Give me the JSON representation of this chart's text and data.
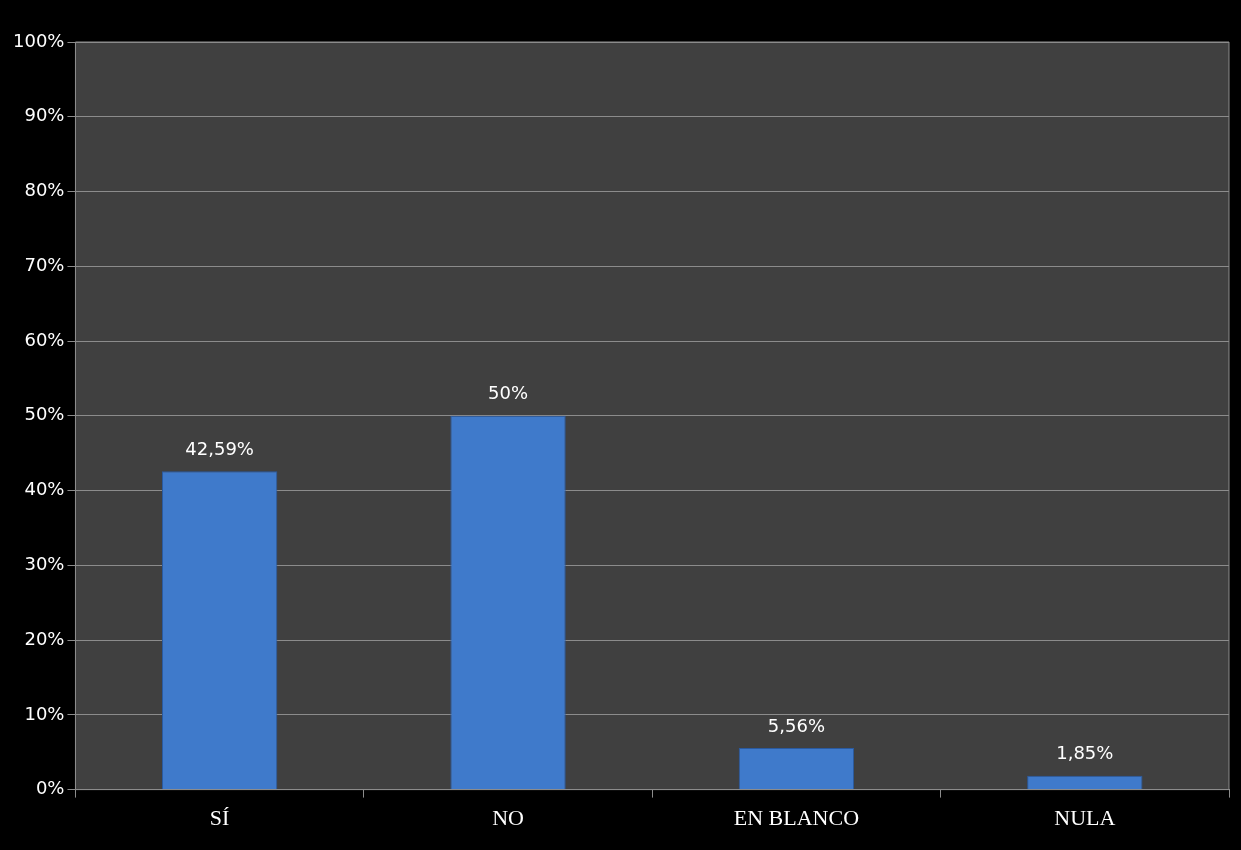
{
  "chart_data": {
    "type": "bar",
    "categories": [
      "SÍ",
      "NO",
      "EN BLANCO",
      "NULA"
    ],
    "values": [
      42.59,
      50,
      5.56,
      1.85
    ],
    "value_labels": [
      "42,59%",
      "50%",
      "5,56%",
      "1,85%"
    ],
    "color": "#3f7acb",
    "ylim": [
      0,
      100
    ],
    "yticks": [
      {
        "value": 0,
        "label": "0%"
      },
      {
        "value": 10,
        "label": "10%"
      },
      {
        "value": 20,
        "label": "20%"
      },
      {
        "value": 30,
        "label": "30%"
      },
      {
        "value": 40,
        "label": "40%"
      },
      {
        "value": 50,
        "label": "50%"
      },
      {
        "value": 60,
        "label": "60%"
      },
      {
        "value": 70,
        "label": "70%"
      },
      {
        "value": 80,
        "label": "80%"
      },
      {
        "value": 90,
        "label": "90%"
      },
      {
        "value": 100,
        "label": "100%"
      }
    ],
    "grid": "y",
    "legend": false
  }
}
